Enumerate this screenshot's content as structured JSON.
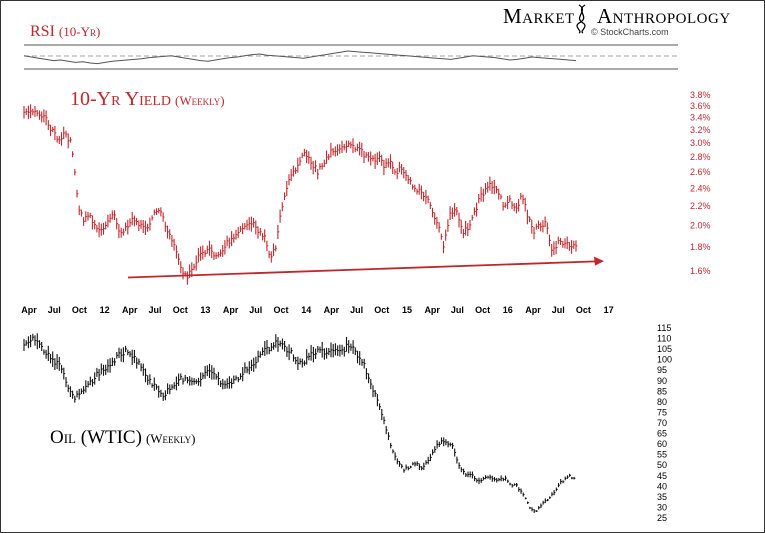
{
  "brand": {
    "name_left": "Market",
    "name_right": "Anthropology",
    "source": "© StockCharts.com",
    "symbol": "dna-helix-icon"
  },
  "colors": {
    "red": "#c0272d",
    "black": "#111111",
    "rsi_line": "#555555",
    "grid": "#999999"
  },
  "chart_data": [
    {
      "type": "line",
      "title": "RSI",
      "title_suffix": "(10-Yr)",
      "reference_lines": "dashed-center",
      "values": [
        52,
        50,
        48,
        46,
        44,
        45,
        43,
        41,
        42,
        40,
        39,
        41,
        43,
        44,
        45,
        46,
        47,
        49,
        50,
        51,
        52,
        50,
        48,
        46,
        44,
        43,
        45,
        47,
        49,
        50,
        52,
        54,
        55,
        53,
        52,
        51,
        50,
        49,
        48,
        50,
        52,
        54,
        56,
        58,
        60,
        59,
        58,
        57,
        56,
        55,
        54,
        53,
        52,
        51,
        50,
        49,
        48,
        47,
        46,
        48,
        50,
        52,
        51,
        50,
        49,
        47,
        45,
        46,
        48,
        50,
        49,
        48,
        47,
        46,
        45,
        44
      ]
    },
    {
      "type": "line",
      "title": "10-Yr Yield",
      "title_suffix": "(Weekly)",
      "style": "weekly-ohlc-bars",
      "color": "red",
      "x_tick_labels": [
        "Apr",
        "Jul",
        "Oct",
        "12",
        "Apr",
        "Jul",
        "Oct",
        "13",
        "Apr",
        "Jul",
        "Oct",
        "14",
        "Apr",
        "Jul",
        "Oct",
        "15",
        "Apr",
        "Jul",
        "Oct",
        "16",
        "Apr",
        "Jul",
        "Oct",
        "17"
      ],
      "y_tick_labels": [
        "3.8%",
        "3.6%",
        "3.4%",
        "3.2%",
        "3.0%",
        "2.8%",
        "2.6%",
        "2.4%",
        "2.2%",
        "2.0%",
        "1.8%",
        "1.6%"
      ],
      "ylim": [
        1.6,
        3.8
      ],
      "log_scale": true,
      "series_values": [
        3.45,
        3.5,
        3.55,
        3.45,
        3.3,
        3.15,
        3.05,
        3.15,
        2.95,
        2.2,
        2.05,
        2.1,
        2.0,
        1.95,
        2.05,
        2.1,
        1.9,
        2.0,
        2.05,
        2.0,
        1.97,
        2.0,
        2.15,
        2.1,
        1.95,
        1.8,
        1.65,
        1.55,
        1.6,
        1.72,
        1.75,
        1.8,
        1.72,
        1.78,
        1.85,
        1.9,
        1.95,
        2.0,
        2.05,
        1.95,
        1.9,
        1.7,
        1.8,
        2.2,
        2.5,
        2.6,
        2.75,
        2.85,
        2.7,
        2.6,
        2.75,
        2.85,
        2.9,
        2.95,
        3.0,
        2.95,
        2.9,
        2.8,
        2.75,
        2.8,
        2.7,
        2.75,
        2.6,
        2.65,
        2.5,
        2.4,
        2.35,
        2.3,
        2.15,
        2.0,
        1.8,
        2.1,
        2.2,
        1.95,
        1.95,
        2.1,
        2.3,
        2.4,
        2.45,
        2.35,
        2.2,
        2.25,
        2.2,
        2.3,
        2.1,
        1.95,
        2.0,
        2.05,
        1.75,
        1.85,
        1.85,
        1.8,
        1.8
      ],
      "trendline": {
        "from": 1.55,
        "to": 1.68,
        "arrow": true
      }
    },
    {
      "type": "line",
      "title": "Oil (WTIC)",
      "title_suffix": "(Weekly)",
      "style": "weekly-ohlc-bars",
      "color": "black",
      "y_tick_labels": [
        "115",
        "110",
        "105",
        "100",
        "95",
        "90",
        "85",
        "80",
        "75",
        "70",
        "65",
        "60",
        "55",
        "50",
        "45",
        "40",
        "35",
        "30",
        "25"
      ],
      "ylim": [
        25,
        115
      ],
      "series_values": [
        106,
        110,
        108,
        104,
        101,
        99,
        95,
        85,
        82,
        84,
        87,
        91,
        94,
        96,
        99,
        102,
        104,
        103,
        99,
        94,
        89,
        86,
        83,
        86,
        89,
        91,
        91,
        89,
        92,
        95,
        93,
        89,
        88,
        90,
        91,
        95,
        96,
        100,
        105,
        106,
        108,
        107,
        104,
        100,
        99,
        101,
        103,
        104,
        103,
        104,
        103,
        106,
        105,
        101,
        96,
        88,
        79,
        70,
        60,
        52,
        48,
        49,
        51,
        49,
        52,
        58,
        61,
        60,
        58,
        48,
        45,
        45,
        42,
        44,
        44,
        43,
        44,
        41,
        40,
        36,
        30,
        28,
        32,
        34,
        38,
        42,
        45,
        44
      ]
    }
  ]
}
